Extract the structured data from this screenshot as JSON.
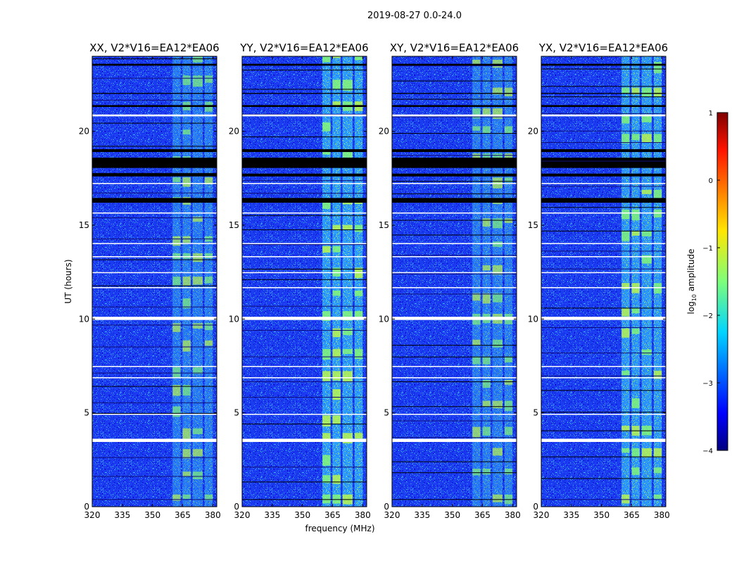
{
  "chart_data": {
    "type": "heatmap",
    "suptitle": "2019-08-27 0.0-24.0",
    "xlabel": "frequency (MHz)",
    "ylabel": "UT (hours)",
    "xlim": [
      320,
      382
    ],
    "ylim": [
      0,
      24
    ],
    "xticks": [
      "320",
      "335",
      "350",
      "365",
      "380"
    ],
    "yticks": [
      "0",
      "5",
      "10",
      "15",
      "20"
    ],
    "panels": [
      {
        "title": "XX, V2*V16=EA12*EA06",
        "pol": "XX",
        "rfi_strength": 0.55
      },
      {
        "title": "YY, V2*V16=EA12*EA06",
        "pol": "YY",
        "rfi_strength": 0.85
      },
      {
        "title": "XY, V2*V16=EA12*EA06",
        "pol": "XY",
        "rfi_strength": 0.55
      },
      {
        "title": "YX, V2*V16=EA12*EA06",
        "pol": "YX",
        "rfi_strength": 0.8
      }
    ],
    "rfi_band_mhz": [
      360,
      381
    ],
    "rfi_subbands_mhz": [
      [
        360,
        364
      ],
      [
        365,
        369
      ],
      [
        370,
        375
      ],
      [
        376,
        380
      ]
    ],
    "flagged_hours_white": [
      [
        3.45,
        3.62
      ],
      [
        9.95,
        10.12
      ],
      [
        20.8,
        20.9
      ],
      [
        14.0,
        14.05
      ],
      [
        6.85,
        6.9
      ],
      [
        7.45,
        7.5
      ],
      [
        15.62,
        15.68
      ],
      [
        11.65,
        11.7
      ],
      [
        12.45,
        12.5
      ],
      [
        13.3,
        13.35
      ],
      [
        17.2,
        17.25
      ],
      [
        4.9,
        4.95
      ]
    ],
    "flagged_hours_black": [
      [
        18.05,
        18.6
      ],
      [
        18.9,
        19.05
      ],
      [
        16.2,
        16.45
      ],
      [
        17.6,
        17.75
      ],
      [
        21.3,
        21.4
      ],
      [
        22.0,
        22.05
      ],
      [
        23.5,
        23.6
      ]
    ],
    "colorbar": {
      "label": "log10 amplitude",
      "label_base": "log",
      "label_sub": "10",
      "label_rest": " amplitude",
      "min": -4,
      "max": 1,
      "ticks": [
        "1",
        "0",
        "−1",
        "−2",
        "−3",
        "−4"
      ],
      "colormap": "jet"
    }
  }
}
